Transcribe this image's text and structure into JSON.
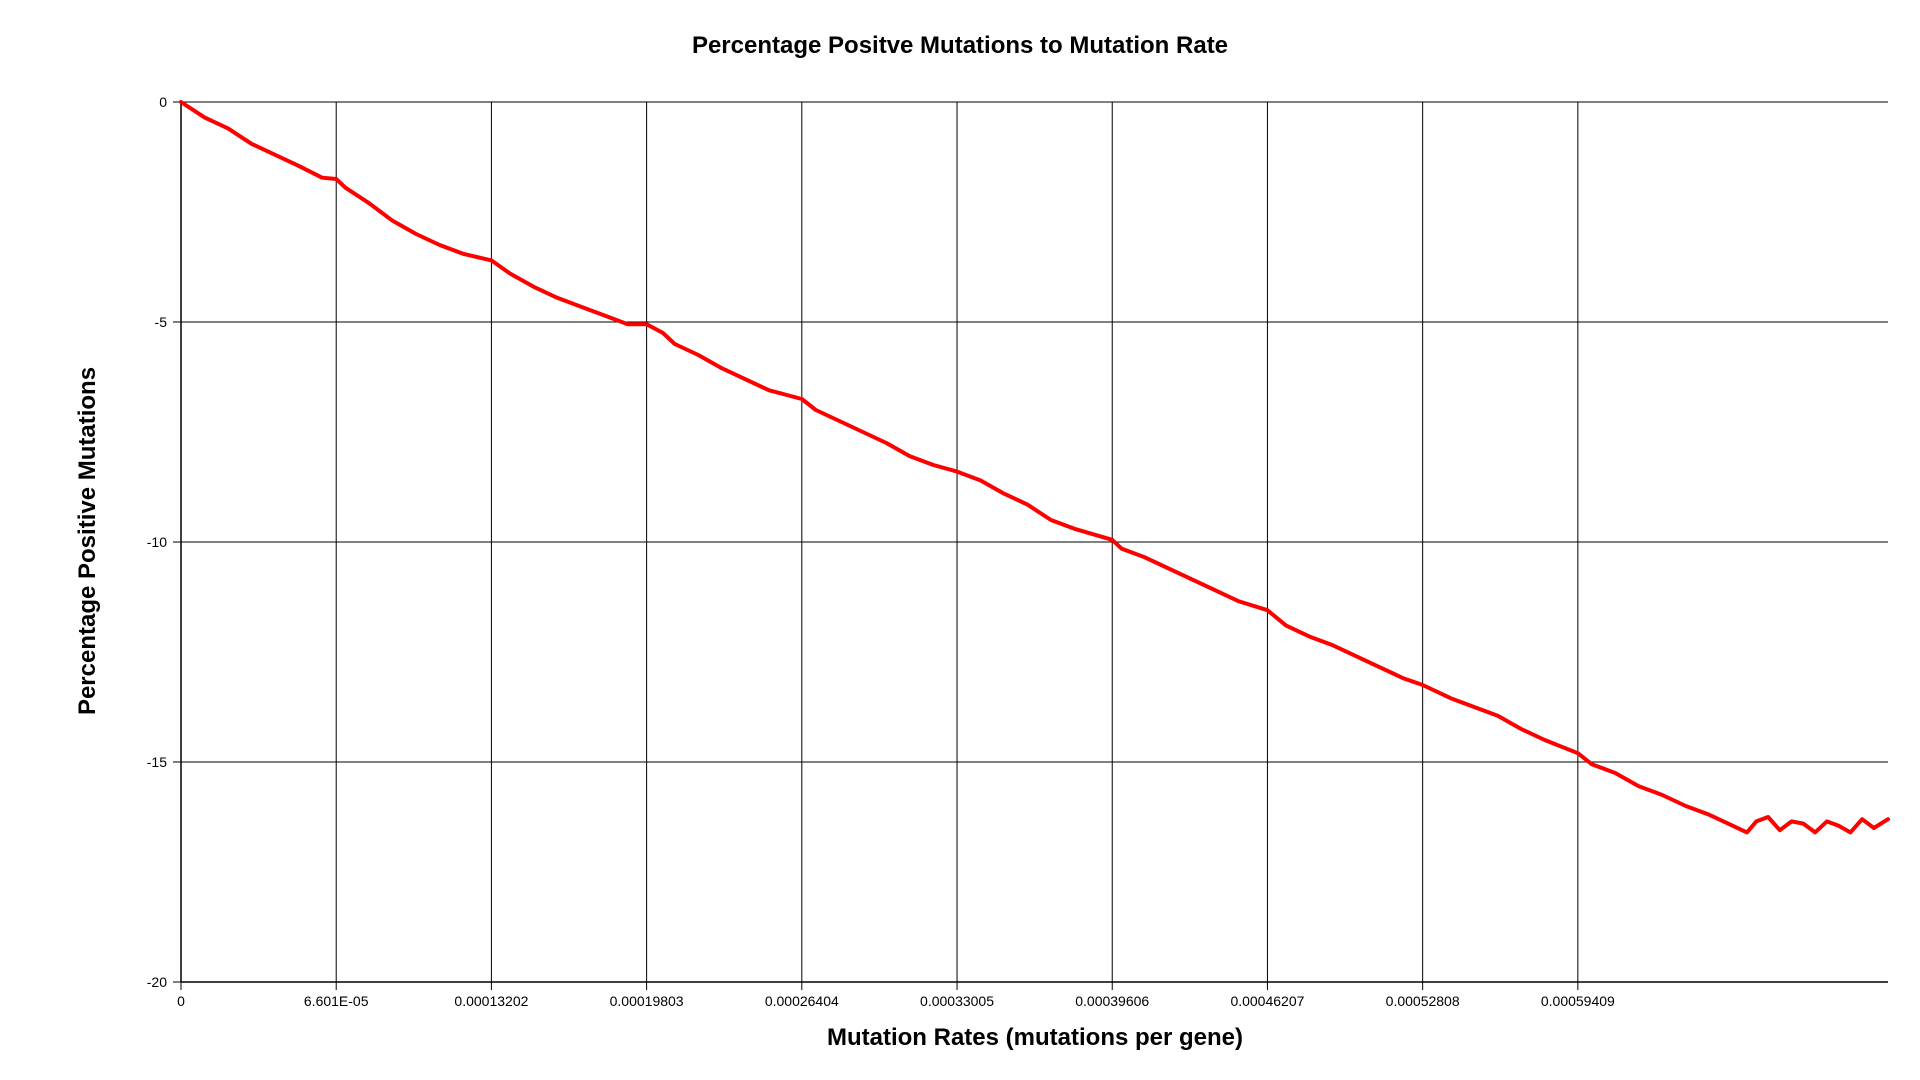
{
  "chart_data": {
    "type": "line",
    "title": "Percentage Positve Mutations to Mutation Rate",
    "xlabel": "Mutation Rates (mutations per gene)",
    "ylabel": "Percentage Positive Mutations",
    "xlim": [
      0,
      0.000726
    ],
    "ylim": [
      -20,
      0
    ],
    "x_ticks": [
      {
        "value": 0,
        "label": "0"
      },
      {
        "value": 6.601e-05,
        "label": "6.601E-05"
      },
      {
        "value": 0.00013202,
        "label": "0.00013202"
      },
      {
        "value": 0.00019803,
        "label": "0.00019803"
      },
      {
        "value": 0.00026404,
        "label": "0.00026404"
      },
      {
        "value": 0.00033005,
        "label": "0.00033005"
      },
      {
        "value": 0.00039606,
        "label": "0.00039606"
      },
      {
        "value": 0.00046207,
        "label": "0.00046207"
      },
      {
        "value": 0.00052808,
        "label": "0.00052808"
      },
      {
        "value": 0.00059409,
        "label": "0.00059409"
      }
    ],
    "y_ticks": [
      {
        "value": 0,
        "label": "0"
      },
      {
        "value": -5,
        "label": "-5"
      },
      {
        "value": -10,
        "label": "-10"
      },
      {
        "value": -15,
        "label": "-15"
      },
      {
        "value": -20,
        "label": "-20"
      }
    ],
    "grid": true,
    "line_color": "#ff0000",
    "series": [
      {
        "x": [
          0,
          1e-05,
          2e-05,
          3e-05,
          4e-05,
          5e-05,
          6e-05,
          6.601e-05,
          7e-05,
          8e-05,
          9e-05,
          0.0001,
          0.00011,
          0.00012,
          0.00013202,
          0.00014,
          0.00015,
          0.00016,
          0.00017,
          0.00018,
          0.00019,
          0.00019803,
          0.000205,
          0.00021,
          0.00022,
          0.00023,
          0.00024,
          0.00025,
          0.00026404,
          0.00027,
          0.00028,
          0.00029,
          0.0003,
          0.00031,
          0.00032,
          0.00033005,
          0.00034,
          0.00035,
          0.00036,
          0.00037,
          0.00038,
          0.00039606,
          0.0004,
          0.00041,
          0.00042,
          0.00043,
          0.00044,
          0.00045,
          0.00046207,
          0.00047,
          0.00048,
          0.00049,
          0.0005,
          0.00051,
          0.00052,
          0.00052808,
          0.00054,
          0.00055,
          0.00056,
          0.00057,
          0.00058,
          0.00059409,
          0.0006,
          0.00061,
          0.00062,
          0.00063,
          0.00064,
          0.00065,
          0.00066,
          0.000666,
          0.00067,
          0.000675,
          0.00068,
          0.000685,
          0.00069,
          0.000695,
          0.0007,
          0.000705,
          0.00071,
          0.000715,
          0.00072,
          0.000726
        ],
        "y": [
          0,
          -0.35,
          -0.6,
          -0.95,
          -1.2,
          -1.45,
          -1.72,
          -1.75,
          -1.95,
          -2.3,
          -2.7,
          -3.0,
          -3.25,
          -3.45,
          -3.6,
          -3.9,
          -4.2,
          -4.45,
          -4.65,
          -4.85,
          -5.05,
          -5.05,
          -5.25,
          -5.5,
          -5.75,
          -6.05,
          -6.3,
          -6.55,
          -6.75,
          -7.0,
          -7.25,
          -7.5,
          -7.75,
          -8.05,
          -8.25,
          -8.4,
          -8.6,
          -8.9,
          -9.15,
          -9.5,
          -9.7,
          -9.95,
          -10.15,
          -10.35,
          -10.6,
          -10.85,
          -11.1,
          -11.35,
          -11.55,
          -11.9,
          -12.15,
          -12.35,
          -12.6,
          -12.85,
          -13.1,
          -13.25,
          -13.55,
          -13.75,
          -13.95,
          -14.25,
          -14.5,
          -14.8,
          -15.05,
          -15.25,
          -15.55,
          -15.75,
          -16.0,
          -16.2,
          -16.45,
          -16.6,
          -16.35,
          -16.25,
          -16.55,
          -16.35,
          -16.4,
          -16.6,
          -16.35,
          -16.45,
          -16.6,
          -16.3,
          -16.5,
          -16.3
        ]
      }
    ]
  }
}
